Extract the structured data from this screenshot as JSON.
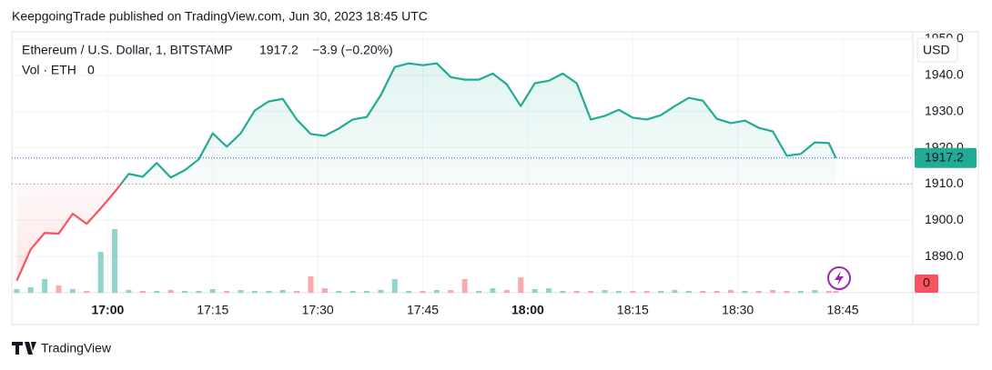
{
  "header": "KeepgoingTrade published on TradingView.com, Jun 30, 2023 18:45 UTC",
  "footer": "TradingView",
  "chart_data": {
    "type": "baseline",
    "symbol": "Ethereum / U.S. Dollar, 1, BITSTAMP",
    "change": "−3.9 (−0.20%)",
    "currency": "USD",
    "baseline": 1910,
    "up_color": "#22ab94",
    "down_color": "#f7525f",
    "grid": true,
    "x": [
      1007,
      1009,
      1011,
      1013,
      1015,
      1017,
      1019,
      1021,
      1023,
      1025,
      1027,
      1029,
      1031,
      1033,
      1035,
      1037,
      1039,
      1041,
      1043,
      1045,
      1047,
      1049,
      1051,
      1053,
      1055,
      1057,
      1059,
      1061,
      1063,
      1065,
      1067,
      1069,
      1071,
      1073,
      1075,
      1077,
      1079,
      1081,
      1083,
      1085,
      1087,
      1089,
      1091,
      1093,
      1095,
      1097,
      1099,
      1101,
      1103,
      1105,
      1107,
      1109,
      1111,
      1113,
      1115,
      1117,
      1119,
      1121,
      1123,
      1124
    ],
    "series": [
      {
        "name": "Ethereum / U.S. Dollar",
        "color": "#22ab94",
        "values": [
          1883.3,
          1892.0,
          1896.5,
          1896.3,
          1901.8,
          1899.0,
          1903.3,
          1907.8,
          1912.8,
          1912.0,
          1915.8,
          1911.8,
          1913.8,
          1916.8,
          1924.0,
          1920.3,
          1924.0,
          1930.3,
          1932.8,
          1933.5,
          1927.8,
          1923.8,
          1923.3,
          1925.3,
          1927.8,
          1928.5,
          1934.5,
          1942.3,
          1943.3,
          1942.8,
          1943.3,
          1939.5,
          1938.8,
          1938.8,
          1940.5,
          1937.5,
          1931.5,
          1937.8,
          1938.5,
          1940.5,
          1937.8,
          1927.8,
          1928.8,
          1930.5,
          1928.3,
          1927.8,
          1929.0,
          1931.5,
          1933.8,
          1933.0,
          1928.0,
          1926.8,
          1927.5,
          1925.5,
          1924.5,
          1917.8,
          1918.3,
          1921.5,
          1921.3,
          1917.2
        ]
      }
    ],
    "volume": {
      "name": "Vol · ETH",
      "last": 0,
      "ylim": [
        0,
        100
      ],
      "values": [
        4,
        6,
        15,
        8,
        4,
        2,
        45,
        70,
        3,
        2,
        2,
        3,
        2,
        2,
        4,
        2,
        3,
        2,
        2,
        3,
        2,
        18,
        5,
        2,
        2,
        2,
        3,
        15,
        2,
        2,
        3,
        3,
        15,
        2,
        5,
        3,
        17,
        4,
        5,
        2,
        2,
        2,
        3,
        2,
        2,
        2,
        2,
        3,
        2,
        2,
        2,
        3,
        2,
        2,
        3,
        2,
        2,
        3,
        2,
        2
      ]
    },
    "xlim": [
      1006.3,
      1135
    ],
    "xticks": [
      {
        "value": 1020,
        "label": "17:00"
      },
      {
        "value": 1035,
        "label": "17:15"
      },
      {
        "value": 1050,
        "label": "17:30"
      },
      {
        "value": 1065,
        "label": "17:45"
      },
      {
        "value": 1080,
        "label": "18:00"
      },
      {
        "value": 1095,
        "label": "18:15"
      },
      {
        "value": 1110,
        "label": "18:30"
      },
      {
        "value": 1125,
        "label": "18:45"
      }
    ],
    "ylim": [
      1880,
      1952
    ],
    "yticks": [
      {
        "value": 1890,
        "label": "1890.0"
      },
      {
        "value": 1900,
        "label": "1900.0"
      },
      {
        "value": 1910,
        "label": "1910.0"
      },
      {
        "value": 1920,
        "label": "1920.0"
      },
      {
        "value": 1930,
        "label": "1930.0"
      },
      {
        "value": 1940,
        "label": "1940.0"
      },
      {
        "value": 1950,
        "label": "1950.0"
      }
    ]
  }
}
